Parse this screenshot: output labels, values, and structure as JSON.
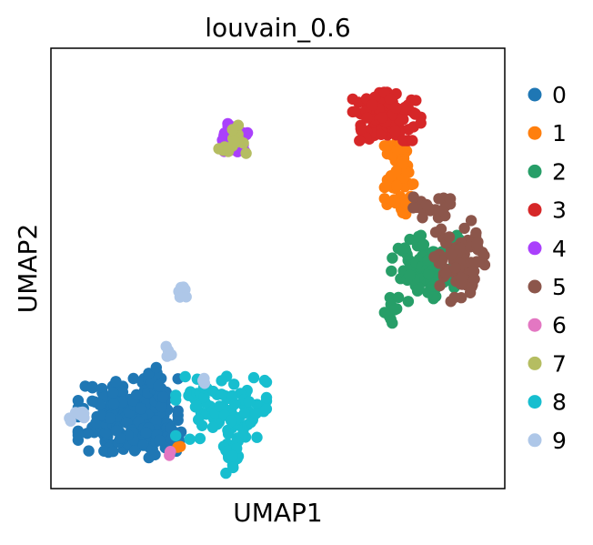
{
  "chart_data": {
    "type": "scatter",
    "title": "louvain_0.6",
    "xlabel": "UMAP1",
    "ylabel": "UMAP2",
    "x_ticks": "none",
    "y_ticks": "none",
    "grid": false,
    "legend_position": "right",
    "xlim": [
      0,
      10
    ],
    "ylim": [
      0,
      10
    ],
    "series": [
      {
        "name": "0",
        "color": "#1f77b4",
        "clusters": [
          {
            "cx": 1.7,
            "cy": 1.6,
            "rx": 1.1,
            "ry": 0.9,
            "n": 190,
            "seed": 11
          },
          {
            "cx": 2.6,
            "cy": 1.2,
            "rx": 0.5,
            "ry": 0.35,
            "n": 30,
            "seed": 12
          },
          {
            "cx": 2.3,
            "cy": 2.3,
            "rx": 0.35,
            "ry": 0.45,
            "n": 18,
            "seed": 13
          }
        ]
      },
      {
        "name": "1",
        "color": "#ff7f0e",
        "clusters": [
          {
            "cx": 7.7,
            "cy": 7.0,
            "rx": 0.35,
            "ry": 0.9,
            "n": 55,
            "seed": 21
          },
          {
            "cx": 2.8,
            "cy": 0.95,
            "rx": 0.05,
            "ry": 0.05,
            "n": 2,
            "seed": 22
          }
        ]
      },
      {
        "name": "2",
        "color": "#279e68",
        "clusters": [
          {
            "cx": 8.3,
            "cy": 5.0,
            "rx": 0.8,
            "ry": 0.75,
            "n": 110,
            "seed": 31
          },
          {
            "cx": 7.55,
            "cy": 4.0,
            "rx": 0.2,
            "ry": 0.35,
            "n": 10,
            "seed": 32
          }
        ]
      },
      {
        "name": "3",
        "color": "#d62728",
        "clusters": [
          {
            "cx": 7.4,
            "cy": 8.45,
            "rx": 0.75,
            "ry": 0.55,
            "n": 115,
            "seed": 41
          }
        ]
      },
      {
        "name": "4",
        "color": "#aa40fc",
        "clusters": [
          {
            "cx": 4.0,
            "cy": 7.95,
            "rx": 0.35,
            "ry": 0.4,
            "n": 40,
            "seed": 51
          }
        ]
      },
      {
        "name": "5",
        "color": "#8c564b",
        "clusters": [
          {
            "cx": 9.0,
            "cy": 5.2,
            "rx": 0.6,
            "ry": 0.95,
            "n": 85,
            "seed": 61
          },
          {
            "cx": 8.35,
            "cy": 6.4,
            "rx": 0.45,
            "ry": 0.25,
            "n": 18,
            "seed": 62
          }
        ]
      },
      {
        "name": "6",
        "color": "#e377c2",
        "clusters": [
          {
            "cx": 2.65,
            "cy": 0.85,
            "rx": 0.15,
            "ry": 0.1,
            "n": 3,
            "seed": 71
          }
        ]
      },
      {
        "name": "7",
        "color": "#b5bd61",
        "clusters": [
          {
            "cx": 4.0,
            "cy": 7.9,
            "rx": 0.3,
            "ry": 0.35,
            "n": 18,
            "seed": 81
          }
        ]
      },
      {
        "name": "8",
        "color": "#17becf",
        "clusters": [
          {
            "cx": 3.75,
            "cy": 1.8,
            "rx": 1.0,
            "ry": 0.75,
            "n": 85,
            "seed": 91
          },
          {
            "cx": 4.0,
            "cy": 0.75,
            "rx": 0.25,
            "ry": 0.4,
            "n": 22,
            "seed": 92
          }
        ]
      },
      {
        "name": "9",
        "color": "#aec7e8",
        "clusters": [
          {
            "cx": 2.9,
            "cy": 4.5,
            "rx": 0.1,
            "ry": 0.15,
            "n": 9,
            "seed": 101
          },
          {
            "cx": 0.55,
            "cy": 1.65,
            "rx": 0.18,
            "ry": 0.12,
            "n": 8,
            "seed": 102
          },
          {
            "cx": 2.6,
            "cy": 3.15,
            "rx": 0.07,
            "ry": 0.2,
            "n": 4,
            "seed": 103
          },
          {
            "cx": 3.4,
            "cy": 2.45,
            "rx": 0.08,
            "ry": 0.06,
            "n": 3,
            "seed": 104
          }
        ]
      }
    ]
  }
}
